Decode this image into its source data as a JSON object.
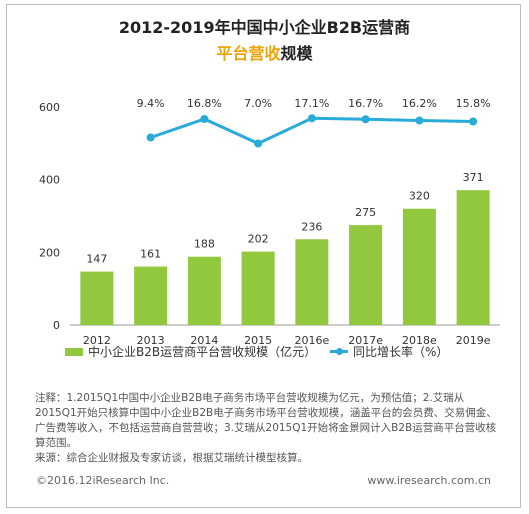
{
  "title": "2012-2019年中国中小企业B2B运营商",
  "subtitle_highlight": "平台营收",
  "subtitle_rest": "规模",
  "chart_data": {
    "type": "bar",
    "categories": [
      "2012",
      "2013",
      "2014",
      "2015",
      "2016e",
      "2017e",
      "2018e",
      "2019e"
    ],
    "series": [
      {
        "name": "中小企业B2B运营商平台营收规模（亿元）",
        "type": "bar",
        "values": [
          147,
          161,
          188,
          202,
          236,
          275,
          320,
          371
        ],
        "color": "#92c83e"
      },
      {
        "name": "同比增长率（%）",
        "type": "line",
        "values": [
          null,
          9.4,
          16.8,
          7.0,
          17.1,
          16.7,
          16.2,
          15.8
        ],
        "labels": [
          "",
          "9.4%",
          "16.8%",
          "7.0%",
          "17.1%",
          "16.7%",
          "16.2%",
          "15.8%"
        ],
        "color": "#2aaad9"
      }
    ],
    "y_ticks": [
      "0",
      "200",
      "400",
      "600"
    ],
    "ylim": [
      0,
      600
    ]
  },
  "notes": "注释：1.2015Q1中国中小企业B2B电子商务市场平台营收规模为亿元，为预估值；2.艾瑞从2015Q1开始只核算中国中小企业B2B电子商务市场平台营收规模，涵盖平台的会员费、交易佣金、广告费等收入，不包括运营商自营营收；3.艾瑞从2015Q1开始将金景网计入B2B运营商平台营收核算范围。",
  "source": "来源：综合企业财报及专家访谈，根据艾瑞统计模型核算。",
  "footer_left": "©2016.12iResearch Inc.",
  "footer_right": "www.iresearch.com.cn"
}
